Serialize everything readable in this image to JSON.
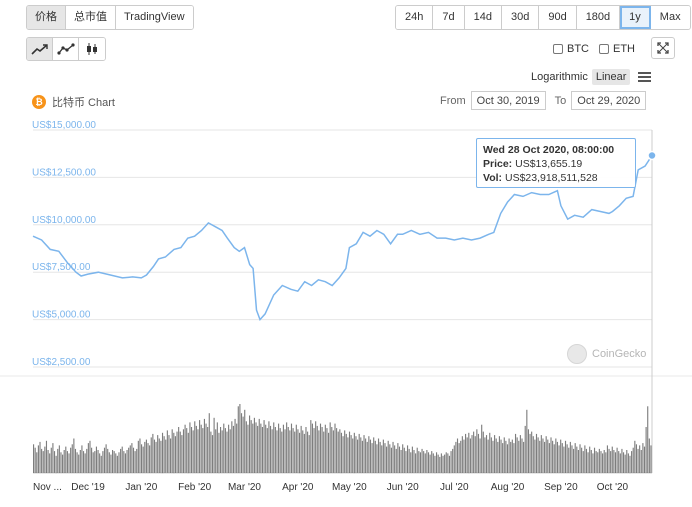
{
  "tabs": [
    {
      "label": "价格",
      "active": true
    },
    {
      "label": "总市值",
      "active": false
    },
    {
      "label": "TradingView",
      "active": false
    }
  ],
  "ranges": [
    {
      "label": "24h",
      "selected": false
    },
    {
      "label": "7d",
      "selected": false
    },
    {
      "label": "14d",
      "selected": false
    },
    {
      "label": "30d",
      "selected": false
    },
    {
      "label": "90d",
      "selected": false
    },
    {
      "label": "180d",
      "selected": false
    },
    {
      "label": "1y",
      "selected": true
    },
    {
      "label": "Max",
      "selected": false
    }
  ],
  "chart_types": [
    {
      "icon": "line-chart-icon",
      "active": true
    },
    {
      "icon": "line-dots-chart-icon",
      "active": false
    },
    {
      "icon": "candlestick-chart-icon",
      "active": false
    }
  ],
  "compare": {
    "btc": "BTC",
    "eth": "ETH"
  },
  "scale": {
    "log_label": "Logarithmic",
    "linear_label": "Linear",
    "selected": "Linear"
  },
  "coin": {
    "symbol": "₿",
    "title": "比特币 Chart"
  },
  "date_range": {
    "from_label": "From",
    "from_value": "Oct 30, 2019",
    "to_label": "To",
    "to_value": "Oct 29, 2020"
  },
  "tooltip": {
    "date": "Wed 28 Oct 2020, 08:00:00",
    "price_label": "Price:",
    "price_value": "US$13,655.19",
    "vol_label": "Vol:",
    "vol_value": "US$23,918,511,528"
  },
  "watermark": "CoinGecko",
  "colors": {
    "line": "#7cb5ec",
    "volume": "#666666",
    "grid": "#e6e6e6",
    "bitcoin": "#f7931a"
  },
  "chart_data": {
    "type": "line",
    "ylabel": "",
    "xlabel": "",
    "ylim": [
      2000,
      15500
    ],
    "yticks": [
      {
        "value": 15000,
        "label": "US$15,000.00"
      },
      {
        "value": 12500,
        "label": "US$12,500.00"
      },
      {
        "value": 10000,
        "label": "US$10,000.00"
      },
      {
        "value": 7500,
        "label": "US$7,500.00"
      },
      {
        "value": 5000,
        "label": "US$5,000.00"
      },
      {
        "value": 2500,
        "label": "US$2,500.00"
      }
    ],
    "xticks": [
      {
        "day": 0,
        "label": "Nov ..."
      },
      {
        "day": 32,
        "label": "Dec '19"
      },
      {
        "day": 63,
        "label": "Jan '20"
      },
      {
        "day": 94,
        "label": "Feb '20"
      },
      {
        "day": 123,
        "label": "Mar '20"
      },
      {
        "day": 154,
        "label": "Apr '20"
      },
      {
        "day": 184,
        "label": "May '20"
      },
      {
        "day": 215,
        "label": "Jun '20"
      },
      {
        "day": 245,
        "label": "Jul '20"
      },
      {
        "day": 276,
        "label": "Aug '20"
      },
      {
        "day": 307,
        "label": "Sep '20"
      },
      {
        "day": 337,
        "label": "Oct '20"
      }
    ],
    "price_series": {
      "name": "Price",
      "points": [
        [
          0,
          9400
        ],
        [
          5,
          9200
        ],
        [
          10,
          8700
        ],
        [
          15,
          8600
        ],
        [
          20,
          8000
        ],
        [
          25,
          7500
        ],
        [
          28,
          7300
        ],
        [
          32,
          7400
        ],
        [
          38,
          7500
        ],
        [
          45,
          7350
        ],
        [
          52,
          7200
        ],
        [
          58,
          7250
        ],
        [
          63,
          7200
        ],
        [
          66,
          7350
        ],
        [
          70,
          7800
        ],
        [
          73,
          8200
        ],
        [
          77,
          8300
        ],
        [
          82,
          8700
        ],
        [
          86,
          8800
        ],
        [
          90,
          9300
        ],
        [
          94,
          9400
        ],
        [
          98,
          9700
        ],
        [
          102,
          10100
        ],
        [
          106,
          9900
        ],
        [
          110,
          9700
        ],
        [
          113,
          9300
        ],
        [
          117,
          8800
        ],
        [
          120,
          8600
        ],
        [
          123,
          8800
        ],
        [
          126,
          7900
        ],
        [
          128,
          7700
        ],
        [
          130,
          5500
        ],
        [
          132,
          5000
        ],
        [
          135,
          5300
        ],
        [
          140,
          6300
        ],
        [
          145,
          6800
        ],
        [
          150,
          6600
        ],
        [
          154,
          6500
        ],
        [
          158,
          7000
        ],
        [
          162,
          6800
        ],
        [
          166,
          7100
        ],
        [
          170,
          7000
        ],
        [
          174,
          6800
        ],
        [
          178,
          7200
        ],
        [
          182,
          7700
        ],
        [
          184,
          8800
        ],
        [
          188,
          9000
        ],
        [
          192,
          9600
        ],
        [
          196,
          9400
        ],
        [
          200,
          9700
        ],
        [
          204,
          9500
        ],
        [
          208,
          9000
        ],
        [
          212,
          9500
        ],
        [
          215,
          9500
        ],
        [
          220,
          9700
        ],
        [
          225,
          9500
        ],
        [
          230,
          9600
        ],
        [
          235,
          9300
        ],
        [
          240,
          9300
        ],
        [
          245,
          9200
        ],
        [
          250,
          9300
        ],
        [
          255,
          9200
        ],
        [
          260,
          9300
        ],
        [
          265,
          9500
        ],
        [
          268,
          9600
        ],
        [
          272,
          10600
        ],
        [
          276,
          11200
        ],
        [
          280,
          11600
        ],
        [
          285,
          11500
        ],
        [
          290,
          11700
        ],
        [
          295,
          11600
        ],
        [
          300,
          11600
        ],
        [
          305,
          11800
        ],
        [
          307,
          11000
        ],
        [
          311,
          10300
        ],
        [
          315,
          10500
        ],
        [
          320,
          10400
        ],
        [
          325,
          10800
        ],
        [
          330,
          10700
        ],
        [
          335,
          10600
        ],
        [
          337,
          10700
        ],
        [
          341,
          11000
        ],
        [
          345,
          11400
        ],
        [
          349,
          11500
        ],
        [
          352,
          12900
        ],
        [
          356,
          13100
        ],
        [
          360,
          13655
        ]
      ]
    },
    "volume_series": {
      "name": "Vol",
      "unit": "USD billions",
      "values": [
        25,
        22,
        18,
        24,
        27,
        21,
        19,
        23,
        28,
        20,
        17,
        22,
        26,
        19,
        15,
        21,
        24,
        18,
        16,
        20,
        23,
        19,
        17,
        22,
        25,
        30,
        21,
        18,
        16,
        20,
        24,
        19,
        17,
        21,
        26,
        28,
        22,
        18,
        19,
        23,
        20,
        17,
        15,
        19,
        22,
        25,
        21,
        18,
        16,
        20,
        19,
        17,
        15,
        18,
        21,
        23,
        19,
        17,
        20,
        22,
        24,
        26,
        22,
        19,
        21,
        28,
        30,
        25,
        23,
        27,
        29,
        26,
        24,
        31,
        34,
        29,
        27,
        33,
        30,
        28,
        35,
        32,
        29,
        37,
        33,
        30,
        38,
        35,
        32,
        36,
        40,
        36,
        33,
        38,
        42,
        39,
        35,
        44,
        40,
        37,
        45,
        41,
        38,
        46,
        42,
        39,
        47,
        43,
        40,
        52,
        36,
        33,
        48,
        38,
        44,
        35,
        40,
        37,
        43,
        39,
        36,
        42,
        38,
        45,
        41,
        47,
        43,
        58,
        60,
        52,
        49,
        55,
        45,
        42,
        50,
        46,
        43,
        48,
        44,
        41,
        47,
        43,
        40,
        46,
        42,
        39,
        45,
        41,
        38,
        44,
        40,
        37,
        43,
        39,
        36,
        42,
        38,
        44,
        40,
        37,
        43,
        39,
        36,
        42,
        38,
        35,
        41,
        37,
        34,
        40,
        36,
        33,
        46,
        43,
        39,
        45,
        41,
        37,
        43,
        40,
        36,
        42,
        39,
        35,
        44,
        40,
        37,
        43,
        39,
        36,
        38,
        35,
        32,
        37,
        34,
        31,
        36,
        33,
        30,
        35,
        32,
        29,
        34,
        31,
        28,
        33,
        30,
        27,
        32,
        29,
        26,
        31,
        28,
        25,
        30,
        27,
        24,
        29,
        26,
        23,
        28,
        25,
        22,
        27,
        24,
        21,
        26,
        23,
        20,
        25,
        22,
        19,
        24,
        21,
        18,
        23,
        20,
        17,
        22,
        19,
        18,
        21,
        19,
        17,
        20,
        18,
        16,
        19,
        17,
        15,
        18,
        16,
        14,
        17,
        15,
        16,
        18,
        17,
        15,
        19,
        21,
        24,
        27,
        30,
        26,
        28,
        32,
        29,
        34,
        31,
        35,
        30,
        33,
        36,
        32,
        38,
        34,
        30,
        42,
        36,
        31,
        33,
        29,
        35,
        31,
        28,
        33,
        30,
        27,
        32,
        29,
        26,
        31,
        28,
        25,
        30,
        27,
        29,
        26,
        34,
        31,
        28,
        33,
        30,
        27,
        41,
        55,
        38,
        34,
        36,
        32,
        29,
        34,
        31,
        28,
        33,
        30,
        27,
        32,
        29,
        26,
        31,
        28,
        25,
        30,
        27,
        24,
        29,
        26,
        23,
        28,
        25,
        22,
        27,
        24,
        21,
        26,
        23,
        20,
        25,
        22,
        19,
        24,
        21,
        18,
        23,
        20,
        17,
        22,
        19,
        18,
        21,
        19,
        17,
        20,
        18,
        24,
        21,
        19,
        23,
        20,
        18,
        22,
        19,
        17,
        21,
        18,
        16,
        20,
        17,
        15,
        19,
        22,
        28,
        25,
        21,
        24,
        20,
        26,
        23,
        40,
        58,
        30,
        24
      ]
    }
  }
}
